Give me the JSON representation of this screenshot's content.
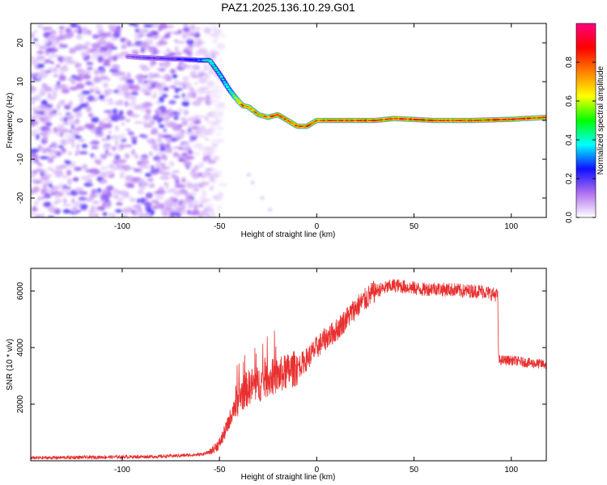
{
  "figure_title": "PAZ1.2025.136.10.29.G01",
  "chart_data": [
    {
      "type": "heatmap",
      "title": "PAZ1.2025.136.10.29.G01",
      "xlabel": "Height of straight line (km)",
      "ylabel": "Frequency (Hz)",
      "xlim": [
        -147,
        118
      ],
      "ylim": [
        -25,
        25
      ],
      "xticks": [
        -100,
        -50,
        0,
        50,
        100
      ],
      "yticks": [
        20,
        10,
        0,
        -10,
        -20
      ],
      "xtick_labels": [
        "-100",
        "-50",
        "0",
        "50",
        "100"
      ],
      "ytick_labels": [
        "20",
        "10",
        "0",
        "-10",
        "-20"
      ],
      "noise_region_x": [
        -147,
        -52
      ],
      "ridge": {
        "x": [
          -97,
          -90,
          -80,
          -70,
          -60,
          -55,
          -50,
          -45,
          -42,
          -38,
          -35,
          -30,
          -25,
          -20,
          -15,
          -10,
          -5,
          0,
          10,
          20,
          30,
          40,
          60,
          80,
          100,
          118
        ],
        "y": [
          16.5,
          16.2,
          16,
          15.8,
          15.5,
          15.5,
          12,
          8,
          6,
          3.8,
          3.5,
          1.5,
          0.8,
          1.5,
          0,
          -1.5,
          -1.5,
          0,
          0,
          0,
          0,
          0.5,
          0,
          0,
          0.3,
          0.8
        ],
        "amp": [
          0.15,
          0.18,
          0.2,
          0.22,
          0.3,
          0.45,
          0.4,
          0.45,
          0.55,
          0.85,
          0.75,
          0.75,
          0.8,
          0.85,
          0.8,
          0.85,
          0.8,
          0.8,
          0.85,
          0.85,
          0.85,
          0.85,
          0.85,
          0.85,
          0.85,
          0.8
        ]
      },
      "colorbar": {
        "label": "Normalized spectral amplitude",
        "range": [
          0,
          1
        ],
        "ticks": [
          0.0,
          0.2,
          0.4,
          0.6,
          0.8
        ],
        "tick_labels": [
          "0.0",
          "0.2",
          "0.4",
          "0.6",
          "0.8"
        ],
        "colors": [
          "#ffffff",
          "#b070f0",
          "#1010ff",
          "#00ffff",
          "#00ff00",
          "#ffff00",
          "#ff8000",
          "#ff0000",
          "#ff0080"
        ]
      }
    },
    {
      "type": "line",
      "xlabel": "Height of straight line (km)",
      "ylabel": "SNR (10 * v/v)",
      "xlim": [
        -147,
        118
      ],
      "ylim": [
        0,
        6800
      ],
      "xticks": [
        -100,
        -50,
        0,
        50,
        100
      ],
      "yticks": [
        2000,
        4000,
        6000
      ],
      "xtick_labels": [
        "-100",
        "-50",
        "0",
        "50",
        "100"
      ],
      "ytick_labels": [
        "2000",
        "4000",
        "6000"
      ],
      "color": "#e83030",
      "series": [
        {
          "name": "SNR",
          "x": [
            -147,
            -120,
            -80,
            -60,
            -55,
            -50,
            -46,
            -42,
            -38,
            -34,
            -30,
            -25,
            -20,
            -15,
            -10,
            -5,
            0,
            5,
            10,
            15,
            20,
            25,
            30,
            35,
            40,
            45,
            50,
            55,
            60,
            65,
            70,
            75,
            80,
            85,
            90,
            93,
            93.5,
            100,
            110,
            118
          ],
          "y": [
            100,
            120,
            150,
            220,
            300,
            600,
            1200,
            2000,
            2400,
            2650,
            2700,
            2900,
            3000,
            3150,
            3300,
            3600,
            4000,
            4350,
            4600,
            5000,
            5400,
            5700,
            6000,
            6100,
            6200,
            6150,
            6100,
            6050,
            6100,
            6050,
            6050,
            6000,
            6000,
            6000,
            5900,
            5850,
            3550,
            3550,
            3450,
            3400
          ]
        }
      ]
    }
  ]
}
